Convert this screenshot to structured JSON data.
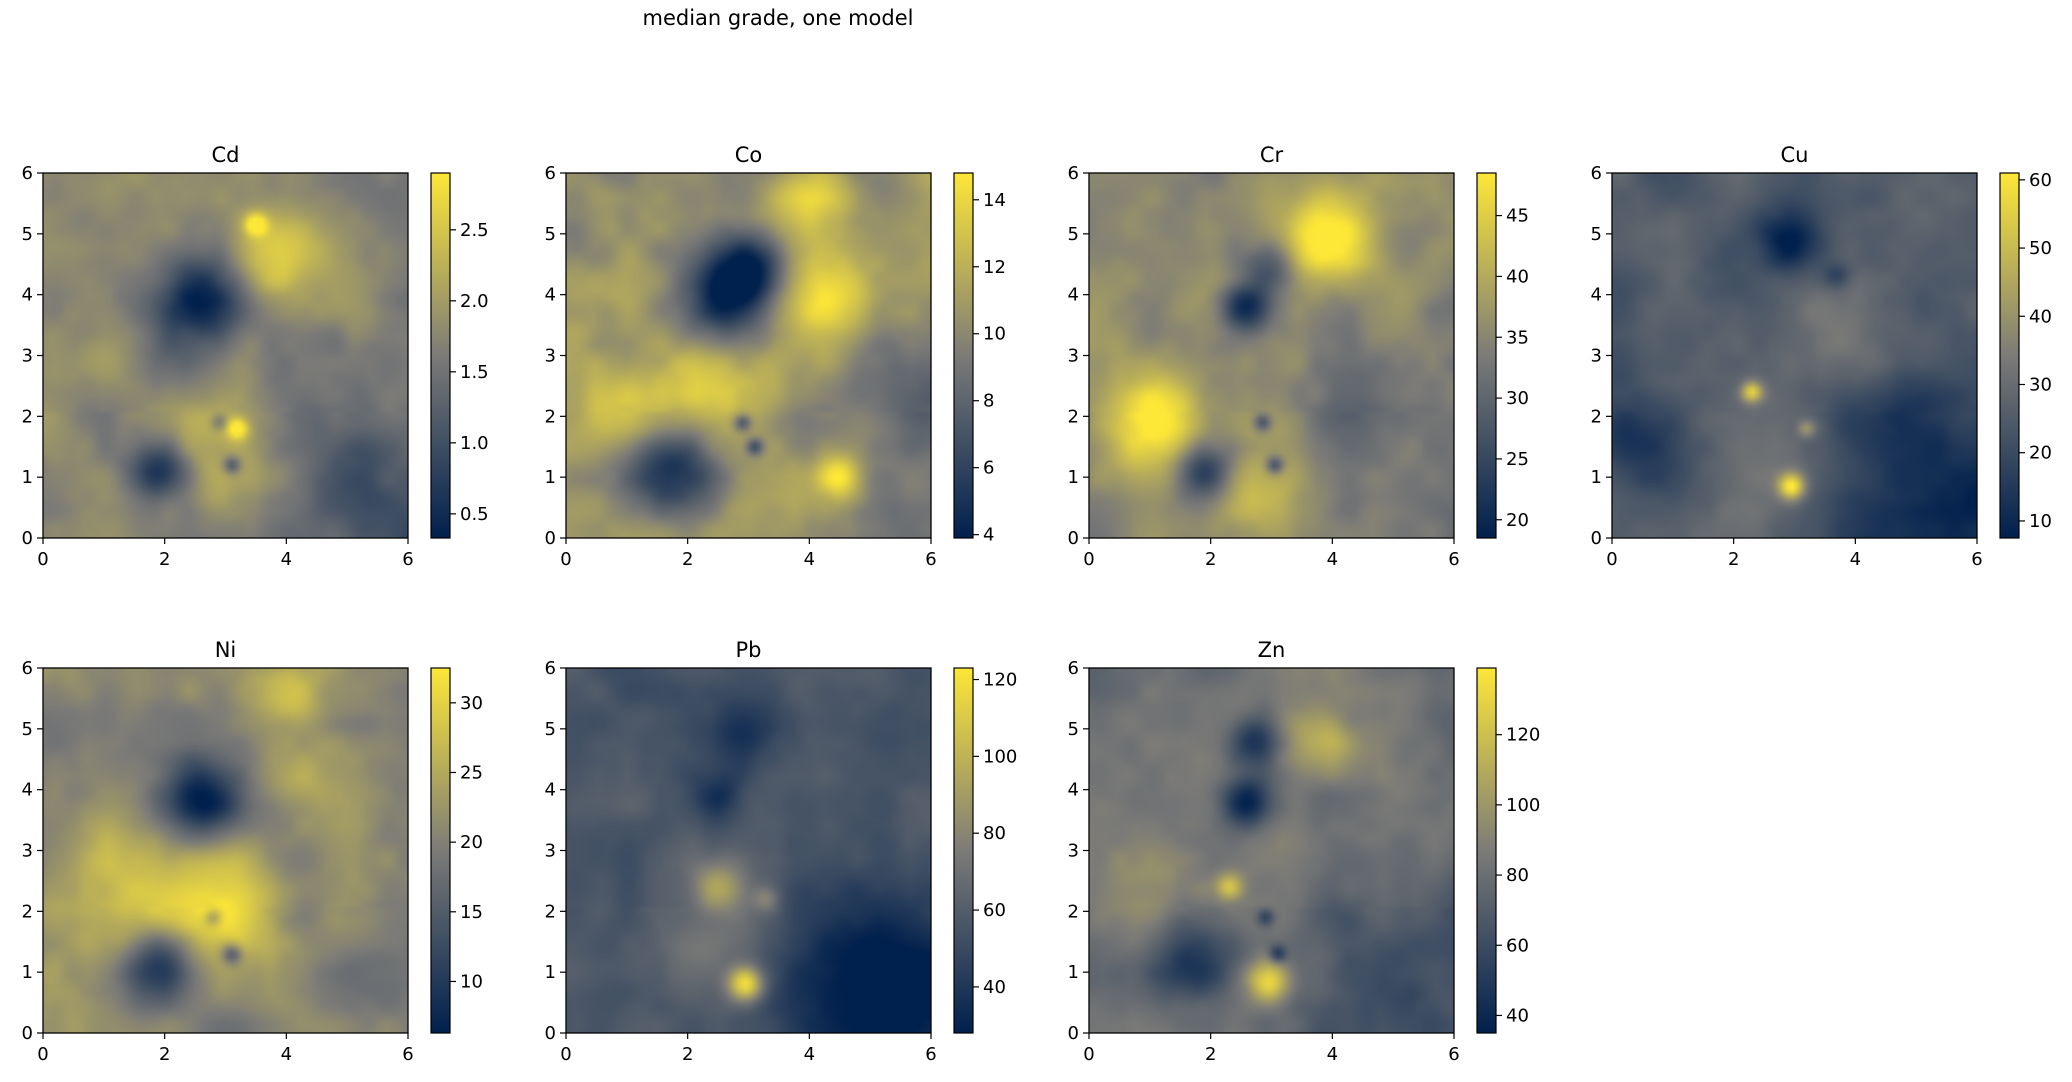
{
  "figure": {
    "title": "median grade, one model"
  },
  "colormap": {
    "name": "cividis",
    "low": "#00204d",
    "mid": "#7c7b78",
    "high": "#fde737"
  },
  "chart_data": [
    {
      "type": "heatmap",
      "title": "Cd",
      "xlim": [
        0,
        6
      ],
      "ylim": [
        0,
        6
      ],
      "x_ticks": [
        0,
        2,
        4,
        6
      ],
      "y_ticks": [
        0,
        1,
        2,
        3,
        4,
        5,
        6
      ],
      "clim": [
        0.33,
        2.9
      ],
      "colorbar_ticks": [
        0.5,
        1.0,
        1.5,
        2.0,
        2.5
      ],
      "colorbar_tick_labels": [
        "0.5",
        "1.0",
        "1.5",
        "2.0",
        "2.5"
      ],
      "base": 0.55,
      "noise": 0.14,
      "east_gradient": 0.18,
      "features": [
        {
          "x": 2.6,
          "y": 3.9,
          "r": 0.55,
          "v": -0.55
        },
        {
          "x": 1.9,
          "y": 1.1,
          "r": 0.35,
          "v": -0.5
        },
        {
          "x": 3.75,
          "y": 4.55,
          "r": 0.6,
          "v": 0.35
        },
        {
          "x": 3.5,
          "y": 5.15,
          "r": 0.12,
          "v": 0.5
        },
        {
          "x": 3.2,
          "y": 1.8,
          "r": 0.12,
          "v": 0.45
        },
        {
          "x": 3.1,
          "y": 1.2,
          "r": 0.1,
          "v": -0.35
        },
        {
          "x": 2.9,
          "y": 1.9,
          "r": 0.1,
          "v": -0.25
        },
        {
          "x": 2.8,
          "y": 1.5,
          "r": 0.7,
          "v": 0.15
        },
        {
          "x": 5.4,
          "y": 0.9,
          "r": 0.8,
          "v": -0.15
        }
      ]
    },
    {
      "type": "heatmap",
      "title": "Co",
      "xlim": [
        0,
        6
      ],
      "ylim": [
        0,
        6
      ],
      "x_ticks": [
        0,
        2,
        4,
        6
      ],
      "y_ticks": [
        0,
        1,
        2,
        3,
        4,
        5,
        6
      ],
      "clim": [
        3.9,
        14.8
      ],
      "colorbar_ticks": [
        4,
        6,
        8,
        10,
        12,
        14
      ],
      "colorbar_tick_labels": [
        "4",
        "6",
        "8",
        "10",
        "12",
        "14"
      ],
      "base": 0.6,
      "noise": 0.16,
      "east_gradient": 0.12,
      "features": [
        {
          "x": 2.6,
          "y": 3.9,
          "r": 0.55,
          "v": -0.6
        },
        {
          "x": 3.0,
          "y": 4.5,
          "r": 0.4,
          "v": -0.45
        },
        {
          "x": 1.8,
          "y": 1.15,
          "r": 0.55,
          "v": -0.5
        },
        {
          "x": 4.2,
          "y": 3.9,
          "r": 0.6,
          "v": 0.35
        },
        {
          "x": 4.0,
          "y": 5.5,
          "r": 0.5,
          "v": 0.3
        },
        {
          "x": 2.5,
          "y": 2.6,
          "r": 0.7,
          "v": 0.3
        },
        {
          "x": 1.0,
          "y": 2.1,
          "r": 0.6,
          "v": 0.25
        },
        {
          "x": 4.5,
          "y": 1.0,
          "r": 0.25,
          "v": 0.4
        },
        {
          "x": 3.1,
          "y": 1.5,
          "r": 0.1,
          "v": -0.4
        },
        {
          "x": 2.9,
          "y": 1.9,
          "r": 0.1,
          "v": -0.4
        },
        {
          "x": 5.5,
          "y": 2.3,
          "r": 0.6,
          "v": -0.2
        }
      ]
    },
    {
      "type": "heatmap",
      "title": "Cr",
      "xlim": [
        0,
        6
      ],
      "ylim": [
        0,
        6
      ],
      "x_ticks": [
        0,
        2,
        4,
        6
      ],
      "y_ticks": [
        0,
        1,
        2,
        3,
        4,
        5,
        6
      ],
      "clim": [
        18.5,
        48.5
      ],
      "colorbar_ticks": [
        20,
        25,
        30,
        35,
        40,
        45
      ],
      "colorbar_tick_labels": [
        "20",
        "25",
        "30",
        "35",
        "40",
        "45"
      ],
      "base": 0.55,
      "noise": 0.14,
      "east_gradient": 0.1,
      "features": [
        {
          "x": 2.6,
          "y": 3.8,
          "r": 0.3,
          "v": -0.55
        },
        {
          "x": 3.0,
          "y": 4.5,
          "r": 0.3,
          "v": -0.4
        },
        {
          "x": 1.9,
          "y": 1.1,
          "r": 0.35,
          "v": -0.5
        },
        {
          "x": 3.9,
          "y": 4.9,
          "r": 0.6,
          "v": 0.45
        },
        {
          "x": 1.1,
          "y": 1.9,
          "r": 0.6,
          "v": 0.45
        },
        {
          "x": 2.8,
          "y": 0.8,
          "r": 0.6,
          "v": 0.25
        },
        {
          "x": 3.05,
          "y": 1.2,
          "r": 0.1,
          "v": -0.4
        },
        {
          "x": 2.85,
          "y": 1.9,
          "r": 0.1,
          "v": -0.35
        },
        {
          "x": 4.5,
          "y": 2.6,
          "r": 0.6,
          "v": -0.15
        }
      ]
    },
    {
      "type": "heatmap",
      "title": "Cu",
      "xlim": [
        0,
        6
      ],
      "ylim": [
        0,
        6
      ],
      "x_ticks": [
        0,
        2,
        4,
        6
      ],
      "y_ticks": [
        0,
        1,
        2,
        3,
        4,
        5,
        6
      ],
      "clim": [
        7.5,
        61
      ],
      "colorbar_ticks": [
        10,
        20,
        30,
        40,
        50,
        60
      ],
      "colorbar_tick_labels": [
        "10",
        "20",
        "30",
        "40",
        "50",
        "60"
      ],
      "base": 0.33,
      "noise": 0.12,
      "east_gradient": 0.2,
      "features": [
        {
          "x": 2.9,
          "y": 4.9,
          "r": 0.35,
          "v": -0.3
        },
        {
          "x": 0.5,
          "y": 1.6,
          "r": 0.5,
          "v": -0.2
        },
        {
          "x": 2.3,
          "y": 2.4,
          "r": 0.12,
          "v": 0.5
        },
        {
          "x": 2.95,
          "y": 0.85,
          "r": 0.15,
          "v": 0.6
        },
        {
          "x": 3.7,
          "y": 3.5,
          "r": 0.6,
          "v": 0.15
        },
        {
          "x": 2.5,
          "y": 1.4,
          "r": 0.9,
          "v": 0.12
        },
        {
          "x": 3.2,
          "y": 1.8,
          "r": 0.1,
          "v": 0.25
        },
        {
          "x": 5.0,
          "y": 1.2,
          "r": 1.0,
          "v": -0.15
        },
        {
          "x": 3.7,
          "y": 4.3,
          "r": 0.15,
          "v": -0.2
        }
      ]
    },
    {
      "type": "heatmap",
      "title": "Ni",
      "xlim": [
        0,
        6
      ],
      "ylim": [
        0,
        6
      ],
      "x_ticks": [
        0,
        2,
        4,
        6
      ],
      "y_ticks": [
        0,
        1,
        2,
        3,
        4,
        5,
        6
      ],
      "clim": [
        6.3,
        32.5
      ],
      "colorbar_ticks": [
        10,
        15,
        20,
        25,
        30
      ],
      "colorbar_tick_labels": [
        "10",
        "15",
        "20",
        "25",
        "30"
      ],
      "base": 0.55,
      "noise": 0.14,
      "east_gradient": 0.05,
      "features": [
        {
          "x": 2.6,
          "y": 3.8,
          "r": 0.5,
          "v": -0.55
        },
        {
          "x": 1.9,
          "y": 1.1,
          "r": 0.45,
          "v": -0.5
        },
        {
          "x": 1.8,
          "y": 2.3,
          "r": 0.9,
          "v": 0.3
        },
        {
          "x": 3.2,
          "y": 2.0,
          "r": 0.6,
          "v": 0.3
        },
        {
          "x": 4.0,
          "y": 5.5,
          "r": 0.4,
          "v": 0.3
        },
        {
          "x": 4.2,
          "y": 4.2,
          "r": 0.5,
          "v": 0.2
        },
        {
          "x": 3.1,
          "y": 1.3,
          "r": 0.12,
          "v": -0.4
        },
        {
          "x": 2.8,
          "y": 1.9,
          "r": 0.1,
          "v": -0.3
        }
      ]
    },
    {
      "type": "heatmap",
      "title": "Pb",
      "xlim": [
        0,
        6
      ],
      "ylim": [
        0,
        6
      ],
      "x_ticks": [
        0,
        2,
        4,
        6
      ],
      "y_ticks": [
        0,
        1,
        2,
        3,
        4,
        5,
        6
      ],
      "clim": [
        28,
        123
      ],
      "colorbar_ticks": [
        40,
        60,
        80,
        100,
        120
      ],
      "colorbar_tick_labels": [
        "40",
        "60",
        "80",
        "100",
        "120"
      ],
      "base": 0.3,
      "noise": 0.1,
      "east_gradient": 0.15,
      "features": [
        {
          "x": 2.95,
          "y": 0.8,
          "r": 0.2,
          "v": 0.65
        },
        {
          "x": 2.5,
          "y": 2.4,
          "r": 0.3,
          "v": 0.3
        },
        {
          "x": 2.6,
          "y": 1.8,
          "r": 0.8,
          "v": 0.15
        },
        {
          "x": 2.9,
          "y": 4.9,
          "r": 0.4,
          "v": -0.25
        },
        {
          "x": 2.5,
          "y": 3.9,
          "r": 0.3,
          "v": -0.25
        },
        {
          "x": 5.0,
          "y": 0.8,
          "r": 1.0,
          "v": -0.25
        },
        {
          "x": 1.8,
          "y": 1.2,
          "r": 0.6,
          "v": 0.08
        },
        {
          "x": 3.3,
          "y": 2.2,
          "r": 0.15,
          "v": 0.2
        }
      ]
    },
    {
      "type": "heatmap",
      "title": "Zn",
      "xlim": [
        0,
        6
      ],
      "ylim": [
        0,
        6
      ],
      "x_ticks": [
        0,
        2,
        4,
        6
      ],
      "y_ticks": [
        0,
        1,
        2,
        3,
        4,
        5,
        6
      ],
      "clim": [
        35,
        139
      ],
      "colorbar_ticks": [
        40,
        60,
        80,
        100,
        120
      ],
      "colorbar_tick_labels": [
        "40",
        "60",
        "80",
        "100",
        "120"
      ],
      "base": 0.45,
      "noise": 0.13,
      "east_gradient": 0.15,
      "features": [
        {
          "x": 2.6,
          "y": 3.8,
          "r": 0.3,
          "v": -0.45
        },
        {
          "x": 2.7,
          "y": 4.8,
          "r": 0.3,
          "v": -0.4
        },
        {
          "x": 1.6,
          "y": 1.15,
          "r": 0.5,
          "v": -0.35
        },
        {
          "x": 3.9,
          "y": 4.8,
          "r": 0.4,
          "v": 0.35
        },
        {
          "x": 2.95,
          "y": 0.85,
          "r": 0.25,
          "v": 0.55
        },
        {
          "x": 2.3,
          "y": 2.4,
          "r": 0.15,
          "v": 0.35
        },
        {
          "x": 3.1,
          "y": 1.3,
          "r": 0.1,
          "v": -0.35
        },
        {
          "x": 2.9,
          "y": 1.9,
          "r": 0.1,
          "v": -0.3
        },
        {
          "x": 1.0,
          "y": 2.5,
          "r": 0.8,
          "v": 0.15
        },
        {
          "x": 5.0,
          "y": 0.9,
          "r": 0.9,
          "v": -0.15
        }
      ]
    }
  ]
}
